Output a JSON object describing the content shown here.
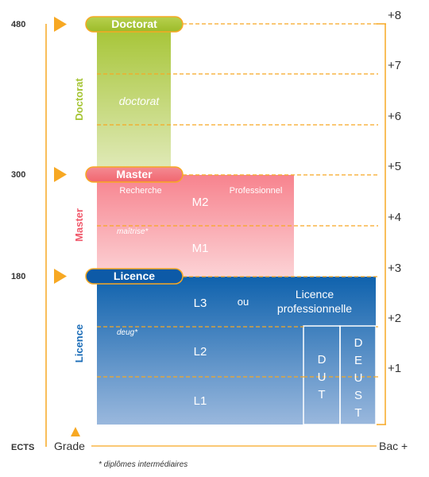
{
  "ects_values": [
    "480",
    "300",
    "180"
  ],
  "ects_label": "ECTS",
  "grade_label": "Grade",
  "bac_axis_label": "Bac +",
  "bac_levels": [
    "+8",
    "+7",
    "+6",
    "+5",
    "+4",
    "+3",
    "+2",
    "+1"
  ],
  "doctorat": {
    "pill": "Doctorat",
    "vertical": "Doctorat",
    "inner": "doctorat"
  },
  "master": {
    "pill": "Master",
    "vertical": "Master",
    "recherche": "Recherche",
    "professionnel": "Professionnel",
    "m2": "M2",
    "m1": "M1",
    "maitrise": "maîtrise*"
  },
  "licence": {
    "pill": "Licence",
    "vertical": "Licence",
    "l3": "L3",
    "ou": "ou",
    "lp_line1": "Licence",
    "lp_line2": "professionnelle",
    "deug": "deug*",
    "l2": "L2",
    "l1": "L1",
    "dut": [
      "D",
      "U",
      "T"
    ],
    "deust": [
      "D",
      "E",
      "U",
      "S",
      "T"
    ]
  },
  "footnote": "* diplômes intermédiaires",
  "colors": {
    "accent_orange": "#f7a823",
    "doctorat_green": "#a5c433",
    "master_red": "#f0596b",
    "master_pill": "#f7838e",
    "licence_blue": "#1a6cb7",
    "licence_pill": "#0d5aa7"
  }
}
